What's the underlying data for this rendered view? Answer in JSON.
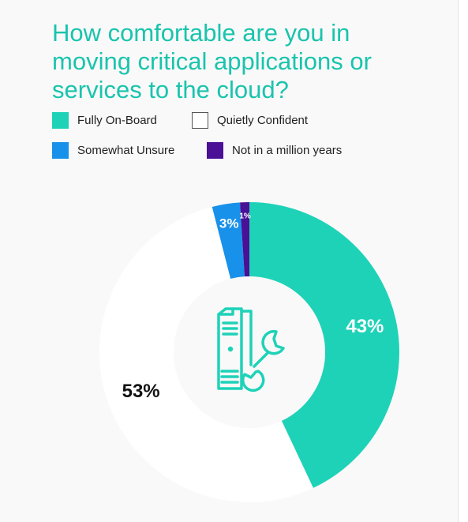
{
  "title": "How comfortable are you in moving critical applications or services to the cloud?",
  "legend": [
    {
      "label": "Fully On-Board",
      "color": "#1ed2b8"
    },
    {
      "label": "Quietly Confident",
      "color": "#ffffff"
    },
    {
      "label": "Somewhat Unsure",
      "color": "#1891ea"
    },
    {
      "label": "Not in a million years",
      "color": "#4a1096"
    }
  ],
  "chart_data": {
    "type": "pie",
    "variant": "donut",
    "start": "top",
    "direction": "clockwise",
    "categories": [
      "Fully On-Board",
      "Quietly Confident",
      "Somewhat Unsure",
      "Not in a million years"
    ],
    "values": [
      43,
      53,
      3,
      1
    ],
    "labels": [
      "43%",
      "53%",
      "3%",
      "1%"
    ],
    "colors": [
      "#1ed2b8",
      "#ffffff",
      "#1891ea",
      "#4a1096"
    ],
    "label_colors": [
      "#ffffff",
      "#111111",
      "#ffffff",
      "#ffffff"
    ],
    "center_icon": "server-wrench-icon"
  }
}
